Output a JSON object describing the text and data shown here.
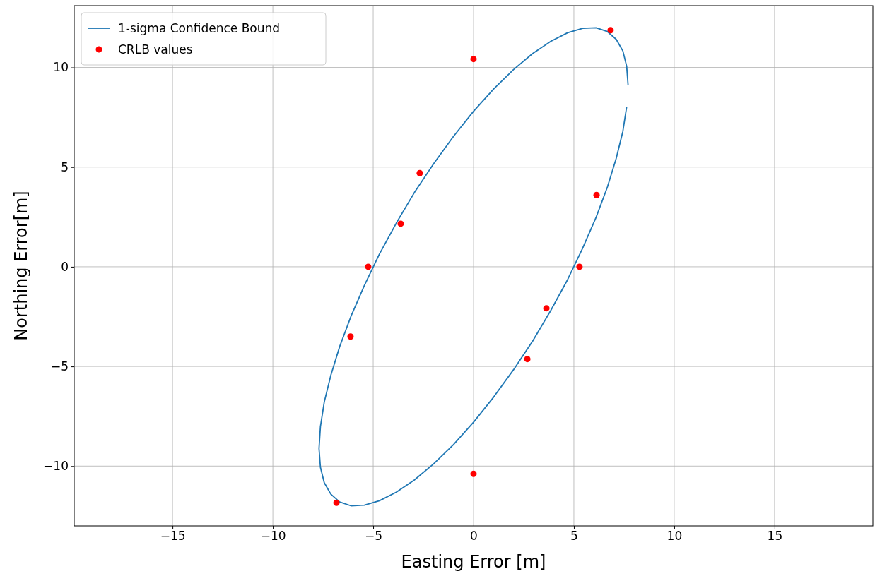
{
  "chart_data": {
    "type": "scatter",
    "xlabel": "Easting Error [m]",
    "ylabel": "Northing Error[m]",
    "xlim": [
      -19.9,
      19.9
    ],
    "ylim": [
      -13,
      13.1
    ],
    "xticks": [
      {
        "value": -15,
        "label": "−15"
      },
      {
        "value": -10,
        "label": "−10"
      },
      {
        "value": -5,
        "label": "−5"
      },
      0,
      5,
      10,
      15
    ],
    "yticks": [
      {
        "value": -10,
        "label": "−10"
      },
      {
        "value": -5,
        "label": "−5"
      },
      0,
      5,
      10
    ],
    "grid": true,
    "legend": "top left",
    "series": [
      {
        "name": "1-sigma Confidence Bound",
        "type": "line",
        "color": "#1f77b4",
        "marker": "none",
        "line_style": "solid",
        "x": [
          7.7,
          7.63,
          7.44,
          7.11,
          6.67,
          6.11,
          5.44,
          4.69,
          3.85,
          2.95,
          1.99,
          1.0,
          0,
          -1.0,
          -1.99,
          -2.95,
          -3.85,
          -4.69,
          -5.44,
          -6.11,
          -6.67,
          -7.11,
          -7.44,
          -7.63,
          -7.7,
          -7.63,
          -7.44,
          -7.11,
          -6.67,
          -6.11,
          -5.44,
          -4.69,
          -3.85,
          -2.95,
          -1.99,
          -1.0,
          0,
          1.0,
          1.99,
          2.95,
          3.85,
          4.69,
          5.44,
          6.11,
          6.67,
          7.11,
          7.44,
          7.63
        ],
        "values": [
          9.12,
          10.06,
          10.83,
          11.41,
          11.8,
          11.99,
          11.96,
          11.74,
          11.31,
          10.7,
          9.89,
          8.92,
          7.8,
          6.54,
          5.17,
          3.72,
          2.19,
          0.64,
          -0.94,
          -2.49,
          -4.0,
          -5.44,
          -6.79,
          -8.02,
          -9.12,
          -10.06,
          -10.83,
          -11.41,
          -11.8,
          -11.99,
          -11.96,
          -11.74,
          -11.31,
          -10.7,
          -9.89,
          -8.92,
          -7.8,
          -6.54,
          -5.17,
          -3.72,
          -2.19,
          -0.64,
          0.94,
          2.49,
          4.0,
          5.44,
          6.79,
          8.02
        ]
      },
      {
        "name": "CRLB values",
        "type": "scatter",
        "color": "#ff0000",
        "marker": "circle",
        "x": [
          0,
          6.83,
          -2.68,
          6.13,
          -3.63,
          -5.25,
          5.28,
          3.63,
          -6.13,
          2.68,
          0,
          -6.83
        ],
        "values": [
          10.42,
          11.87,
          4.7,
          3.6,
          2.16,
          0,
          0,
          -2.08,
          -3.5,
          -4.63,
          -10.39,
          -11.84
        ]
      }
    ]
  }
}
